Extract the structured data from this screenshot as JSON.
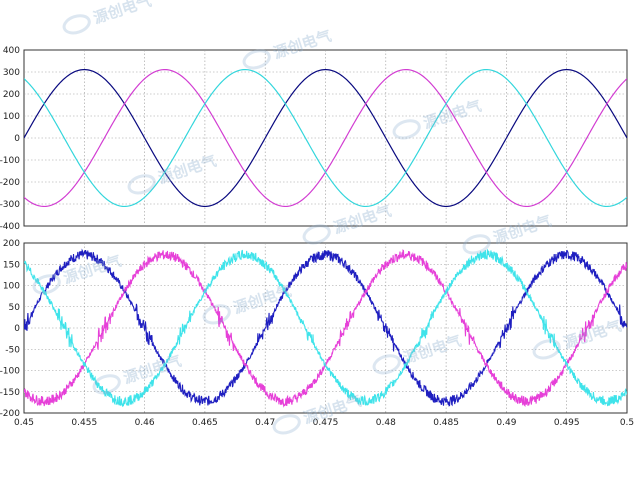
{
  "chart_data": [
    {
      "type": "line",
      "title": "",
      "xlabel": "",
      "ylabel": "",
      "xlim": [
        0.45,
        0.5
      ],
      "ylim": [
        -400,
        400
      ],
      "yticks": [
        400,
        300,
        200,
        100,
        0,
        -100,
        -200,
        -300,
        -400
      ],
      "grid": true,
      "frequency_hz": 50,
      "series": [
        {
          "color": "#0a0a80",
          "amplitude": 311,
          "phase_deg": 180,
          "noise": 0
        },
        {
          "color": "#d23dd2",
          "amplitude": 311,
          "phase_deg": 60,
          "noise": 0
        },
        {
          "color": "#33d6dc",
          "amplitude": 311,
          "phase_deg": -60,
          "noise": 0
        }
      ]
    },
    {
      "type": "line",
      "title": "",
      "xlabel": "",
      "ylabel": "",
      "xlim": [
        0.45,
        0.5
      ],
      "ylim": [
        -200,
        200
      ],
      "yticks": [
        200,
        150,
        100,
        50,
        0,
        -50,
        -100,
        -150,
        -200
      ],
      "xticks": [
        "0.45",
        "0.455",
        "0.46",
        "0.465",
        "0.47",
        "0.475",
        "0.48",
        "0.485",
        "0.49",
        "0.495",
        "0.5"
      ],
      "grid": true,
      "frequency_hz": 50,
      "series": [
        {
          "color": "#1f1fc0",
          "amplitude": 172,
          "phase_deg": 180,
          "noise": 9
        },
        {
          "color": "#e640d8",
          "amplitude": 172,
          "phase_deg": 60,
          "noise": 9
        },
        {
          "color": "#3fe3ea",
          "amplitude": 172,
          "phase_deg": -60,
          "noise": 9
        }
      ]
    }
  ],
  "watermark": {
    "text": "源创电气",
    "color": "#8fb0cf"
  }
}
